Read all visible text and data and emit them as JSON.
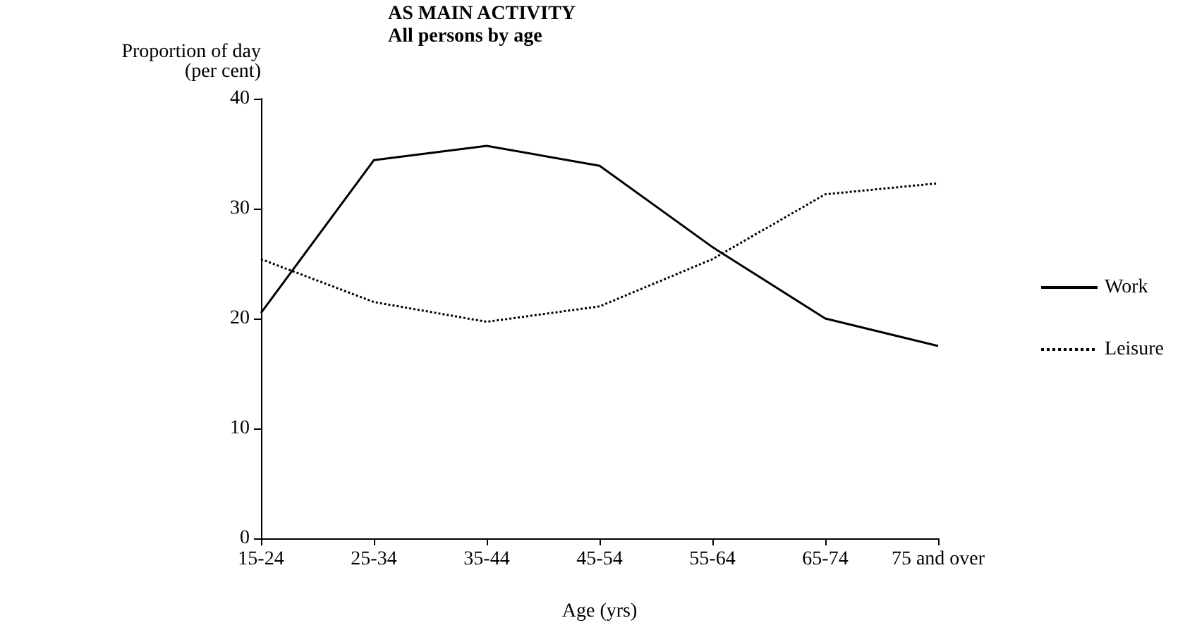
{
  "chart_data": {
    "type": "line",
    "title": "AS MAIN ACTIVITY",
    "subtitle": "All persons by age",
    "xlabel": "Age (yrs)",
    "ylabel": "Proportion of day\n(per cent)",
    "categories": [
      "15-24",
      "25-34",
      "35-44",
      "45-54",
      "55-64",
      "65-74",
      "75 and over"
    ],
    "series": [
      {
        "name": "Work",
        "color": "#000000",
        "line_style": "solid",
        "values": [
          20.5,
          34.4,
          35.7,
          33.9,
          26.5,
          20.0,
          17.5
        ]
      },
      {
        "name": "Leisure",
        "color": "#000000",
        "line_style": "dotted",
        "values": [
          25.4,
          21.5,
          19.7,
          21.1,
          25.4,
          31.3,
          32.3
        ]
      }
    ],
    "ylim": [
      0,
      40
    ],
    "yticks": [
      0,
      10,
      20,
      30,
      40
    ],
    "grid": false,
    "legend": "right",
    "marker": "none"
  }
}
